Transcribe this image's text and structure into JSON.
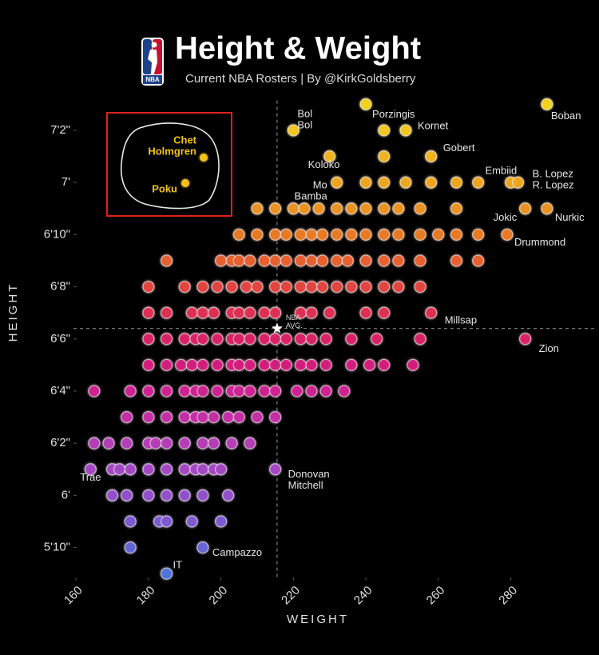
{
  "chart_data": {
    "type": "scatter",
    "title": "Height & Weight",
    "subtitle": "Current NBA Rosters | By @KirkGoldsberry",
    "logo_text": "NBA",
    "x_label": "WEIGHT",
    "y_label": "HEIGHT",
    "xlim": [
      156,
      294
    ],
    "ylim": [
      68.7,
      87.3
    ],
    "xticks": [
      160,
      180,
      200,
      220,
      240,
      260,
      280
    ],
    "yticks": [
      {
        "value": 70,
        "label": "5'10\""
      },
      {
        "value": 72,
        "label": "6'"
      },
      {
        "value": 74,
        "label": "6'2\""
      },
      {
        "value": 76,
        "label": "6'4\""
      },
      {
        "value": 78,
        "label": "6'6\""
      },
      {
        "value": 80,
        "label": "6'8\""
      },
      {
        "value": 82,
        "label": "6'10\""
      },
      {
        "value": 84,
        "label": "7'"
      },
      {
        "value": 86,
        "label": "7'2\""
      }
    ],
    "reference": {
      "x": 215.5,
      "y": 78.4,
      "label_lines": [
        "NBA",
        "AVG."
      ]
    },
    "series": [
      {
        "color": "#f3d21b",
        "x": [
          240,
          290
        ],
        "values": [
          87,
          87
        ]
      },
      {
        "color": "#f2c71c",
        "x": [
          220,
          245,
          251
        ],
        "values": [
          86,
          86,
          86
        ]
      },
      {
        "color": "#f0b41d",
        "x": [
          230,
          245,
          258
        ],
        "values": [
          85,
          85,
          85
        ]
      },
      {
        "color": "#eea71f",
        "x": [
          232,
          240,
          245,
          251,
          258,
          265,
          271,
          280,
          282
        ],
        "values": [
          84,
          84,
          84,
          84,
          84,
          84,
          84,
          84,
          84
        ]
      },
      {
        "color": "#ec9322",
        "x": [
          210,
          215,
          220,
          223,
          227,
          232,
          236,
          240,
          245,
          249,
          255,
          265,
          284,
          290
        ],
        "values": [
          83,
          83,
          83,
          83,
          83,
          83,
          83,
          83,
          83,
          83,
          83,
          83,
          83,
          83
        ]
      },
      {
        "color": "#e97a24",
        "x": [
          205,
          210,
          215,
          218,
          222,
          225,
          228,
          232,
          236,
          240,
          245,
          249,
          255,
          260,
          265,
          271,
          279
        ],
        "values": [
          82,
          82,
          82,
          82,
          82,
          82,
          82,
          82,
          82,
          82,
          82,
          82,
          82,
          82,
          82,
          82,
          82
        ]
      },
      {
        "color": "#e8602f",
        "x": [
          185,
          200,
          203,
          205,
          208,
          212,
          215,
          218,
          222,
          225,
          228,
          232,
          235,
          240,
          245,
          249,
          255,
          265,
          271
        ],
        "values": [
          81,
          81,
          81,
          81,
          81,
          81,
          81,
          81,
          81,
          81,
          81,
          81,
          81,
          81,
          81,
          81,
          81,
          81,
          81
        ]
      },
      {
        "color": "#e3443f",
        "x": [
          180,
          190,
          195,
          199,
          203,
          207,
          210,
          215,
          218,
          222,
          225,
          228,
          232,
          236,
          240,
          245,
          249,
          255
        ],
        "values": [
          80,
          80,
          80,
          80,
          80,
          80,
          80,
          80,
          80,
          80,
          80,
          80,
          80,
          80,
          80,
          80,
          80,
          80
        ]
      },
      {
        "color": "#de2f53",
        "x": [
          180,
          185,
          192,
          195,
          198,
          203,
          205,
          208,
          212,
          215,
          222,
          225,
          230,
          240,
          245,
          258
        ],
        "values": [
          79,
          79,
          79,
          79,
          79,
          79,
          79,
          79,
          79,
          79,
          79,
          79,
          79,
          79,
          79,
          79
        ]
      },
      {
        "color": "#d92266",
        "x": [
          180,
          185,
          190,
          193,
          195,
          199,
          203,
          205,
          208,
          212,
          215,
          218,
          222,
          225,
          229,
          236,
          243,
          255,
          284
        ],
        "values": [
          78,
          78,
          78,
          78,
          78,
          78,
          78,
          78,
          78,
          78,
          78,
          78,
          78,
          78,
          78,
          78,
          78,
          78,
          78
        ]
      },
      {
        "color": "#d31e7c",
        "x": [
          180,
          185,
          189,
          192,
          195,
          199,
          203,
          205,
          208,
          212,
          215,
          218,
          222,
          225,
          229,
          236,
          241,
          245,
          253
        ],
        "values": [
          77,
          77,
          77,
          77,
          77,
          77,
          77,
          77,
          77,
          77,
          77,
          77,
          77,
          77,
          77,
          77,
          77,
          77,
          77
        ]
      },
      {
        "color": "#ce2290",
        "x": [
          165,
          175,
          180,
          185,
          190,
          193,
          195,
          199,
          203,
          205,
          208,
          212,
          215,
          221,
          225,
          229,
          234
        ],
        "values": [
          76,
          76,
          76,
          76,
          76,
          76,
          76,
          76,
          76,
          76,
          76,
          76,
          76,
          76,
          76,
          76,
          76
        ]
      },
      {
        "color": "#c42ea5",
        "x": [
          174,
          180,
          185,
          190,
          193,
          195,
          198,
          202,
          205,
          210,
          215
        ],
        "values": [
          75,
          75,
          75,
          75,
          75,
          75,
          75,
          75,
          75,
          75,
          75
        ]
      },
      {
        "color": "#b53cb6",
        "x": [
          165,
          169,
          174,
          180,
          182,
          185,
          190,
          195,
          198,
          203,
          208
        ],
        "values": [
          74,
          74,
          74,
          74,
          74,
          74,
          74,
          74,
          74,
          74,
          74
        ]
      },
      {
        "color": "#a447c4",
        "x": [
          164,
          170,
          172,
          175,
          180,
          185,
          190,
          193,
          195,
          198,
          200,
          215
        ],
        "values": [
          73,
          73,
          73,
          73,
          73,
          73,
          73,
          73,
          73,
          73,
          73,
          73
        ]
      },
      {
        "color": "#9250cb",
        "x": [
          170,
          174,
          180,
          185,
          190,
          195,
          202
        ],
        "values": [
          72,
          72,
          72,
          72,
          72,
          72,
          72
        ]
      },
      {
        "color": "#7c5ad0",
        "x": [
          175,
          183,
          185,
          192,
          200
        ],
        "values": [
          71,
          71,
          71,
          71,
          71
        ]
      },
      {
        "color": "#6566d6",
        "x": [
          175,
          195
        ],
        "values": [
          70,
          70
        ]
      },
      {
        "color": "#4f72dc",
        "x": [
          185
        ],
        "values": [
          69
        ]
      }
    ],
    "annotations": [
      {
        "lines": [
          "Boban"
        ],
        "x": 290,
        "y": 87
      },
      {
        "lines": [
          "Porzingis"
        ],
        "x": 240,
        "y": 87
      },
      {
        "lines": [
          "Bol",
          "Bol"
        ],
        "x": 220,
        "y": 86
      },
      {
        "lines": [
          "Kornet"
        ],
        "x": 251,
        "y": 86
      },
      {
        "lines": [
          "Gobert"
        ],
        "x": 258,
        "y": 85
      },
      {
        "lines": [
          "Koloko"
        ],
        "x": 230,
        "y": 85
      },
      {
        "lines": [
          "Mo",
          "Bamba"
        ],
        "x": 232,
        "y": 84
      },
      {
        "lines": [
          "Embiid"
        ],
        "x": 280,
        "y": 84
      },
      {
        "lines": [
          "B. Lopez",
          "R. Lopez"
        ],
        "x": 282,
        "y": 84
      },
      {
        "lines": [
          "Jokic"
        ],
        "x": 284,
        "y": 83
      },
      {
        "lines": [
          "Nurkic"
        ],
        "x": 290,
        "y": 83
      },
      {
        "lines": [
          "Drummond"
        ],
        "x": 279,
        "y": 82
      },
      {
        "lines": [
          "Millsap"
        ],
        "x": 258,
        "y": 79
      },
      {
        "lines": [
          "Zion"
        ],
        "x": 284,
        "y": 78
      },
      {
        "lines": [
          "Donovan",
          "Mitchell"
        ],
        "x": 215,
        "y": 73
      },
      {
        "lines": [
          "Trae"
        ],
        "x": 164,
        "y": 73
      },
      {
        "lines": [
          "Campazzo"
        ],
        "x": 195,
        "y": 70
      },
      {
        "lines": [
          "IT"
        ],
        "x": 185,
        "y": 69
      }
    ],
    "inset": {
      "color": "#f2c21d",
      "labels": [
        {
          "lines": [
            "Chet",
            "Holmgren"
          ]
        },
        {
          "lines": [
            "Poku"
          ]
        }
      ]
    }
  }
}
